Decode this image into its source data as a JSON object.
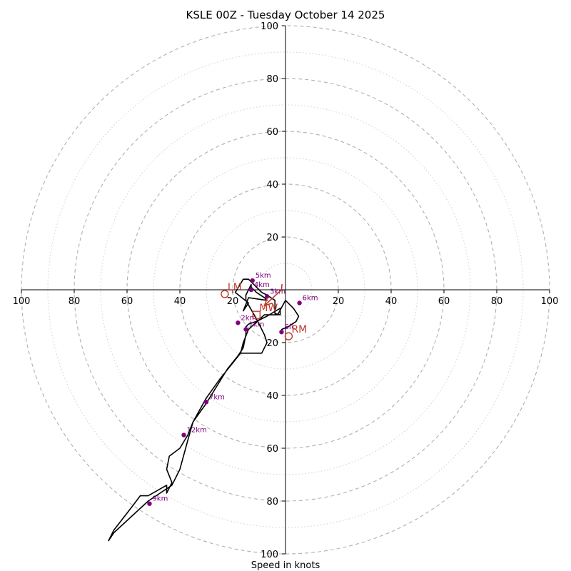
{
  "chart_data": {
    "type": "hodograph",
    "title": "KSLE 00Z - Tuesday October 14 2025",
    "xlabel": "Speed in knots",
    "axis_range": [
      -100,
      100
    ],
    "ring_major": [
      20,
      40,
      60,
      80,
      100
    ],
    "ring_minor": [
      10,
      30,
      50,
      70,
      90
    ],
    "tick_labels": {
      "left": [
        "100",
        "80",
        "60",
        "40",
        "20"
      ],
      "right": [
        "20",
        "40",
        "60",
        "80",
        "100"
      ],
      "top": [
        "100",
        "80",
        "60",
        "40",
        "20"
      ],
      "bottom": [
        "20",
        "40",
        "60",
        "80",
        "100"
      ]
    },
    "trace": [
      [
        -1.5,
        -16
      ],
      [
        -1.4,
        -15
      ],
      [
        1,
        -14
      ],
      [
        4,
        -12
      ],
      [
        5,
        -10
      ],
      [
        3,
        -7
      ],
      [
        0,
        -4
      ],
      [
        -3,
        -9.5
      ],
      [
        -8,
        -9.5
      ],
      [
        -14,
        -15
      ],
      [
        -16,
        -20
      ],
      [
        -17,
        -24
      ],
      [
        -9,
        -24
      ],
      [
        -7,
        -20
      ],
      [
        -8,
        -17
      ],
      [
        -9,
        -15
      ],
      [
        -11,
        -11
      ],
      [
        -15,
        -4
      ],
      [
        -15,
        -2
      ],
      [
        -13,
        2
      ],
      [
        -13,
        1
      ],
      [
        -11,
        -1
      ],
      [
        -8,
        -3
      ],
      [
        -7,
        -4
      ],
      [
        -14,
        -3
      ],
      [
        -16,
        -8
      ],
      [
        -14,
        -5
      ],
      [
        -19,
        -1
      ],
      [
        -16,
        4
      ],
      [
        -15,
        4
      ],
      [
        -14,
        4
      ],
      [
        -12,
        2
      ],
      [
        -10,
        0
      ],
      [
        -9,
        -1
      ],
      [
        -7,
        -2
      ],
      [
        -4,
        -4
      ],
      [
        -4,
        -9
      ],
      [
        -2,
        -9.5
      ],
      [
        -2,
        -7
      ],
      [
        -7,
        -10
      ],
      [
        -11,
        -12
      ],
      [
        -14,
        -13
      ],
      [
        -15,
        -14
      ],
      [
        -15,
        -17
      ],
      [
        -16,
        -22
      ],
      [
        -18,
        -25
      ],
      [
        -22,
        -30
      ],
      [
        -30,
        -43
      ],
      [
        -35,
        -50
      ],
      [
        -37,
        -55
      ],
      [
        -40,
        -60
      ],
      [
        -44,
        -63
      ],
      [
        -45,
        -68
      ],
      [
        -43,
        -73
      ],
      [
        -45,
        -77
      ],
      [
        -45,
        -74
      ],
      [
        -52,
        -78
      ],
      [
        -55,
        -78
      ],
      [
        -58,
        -82
      ],
      [
        -65,
        -91
      ],
      [
        -67,
        -95
      ],
      [
        -65,
        -92
      ],
      [
        -52,
        -80
      ],
      [
        -43,
        -74
      ],
      [
        -40,
        -68
      ],
      [
        -37,
        -57
      ],
      [
        -35,
        -50
      ],
      [
        -30,
        -41
      ],
      [
        -25,
        -34
      ],
      [
        -21,
        -29
      ],
      [
        -17,
        -24
      ]
    ],
    "height_markers": [
      {
        "label": "Sfc",
        "u": -1.5,
        "v": -16
      },
      {
        "label": "6km",
        "u": 5.3,
        "v": -5
      },
      {
        "label": "5km",
        "u": -12.5,
        "v": 3.5
      },
      {
        "label": "4km",
        "u": -13,
        "v": 0
      },
      {
        "label": "3km",
        "u": -7,
        "v": -2.5
      },
      {
        "label": "2km",
        "u": -18,
        "v": -12.5
      },
      {
        "label": "1km",
        "u": -15,
        "v": -15
      },
      {
        "label": "7km",
        "u": -30,
        "v": -42.5
      },
      {
        "label": "12km",
        "u": -38.5,
        "v": -55
      },
      {
        "label": "9km",
        "u": -51.5,
        "v": -81
      }
    ],
    "motion_markers": [
      {
        "label": "LM",
        "u": -23,
        "v": -1.6,
        "shape": "circle"
      },
      {
        "label": "RM",
        "u": 1.2,
        "v": -17.6,
        "shape": "circle"
      },
      {
        "label": "MW",
        "u": -11,
        "v": -9.5,
        "shape": "square"
      }
    ],
    "shear_vector": {
      "u_from": -1.5,
      "v_from": 0,
      "u_to": -8,
      "v_to": -6
    }
  },
  "colors": {
    "trace": "#000000",
    "height_marker": "#800080",
    "motion": "#c0392b",
    "ring": "#b0b0b0",
    "axis": "#000000"
  }
}
